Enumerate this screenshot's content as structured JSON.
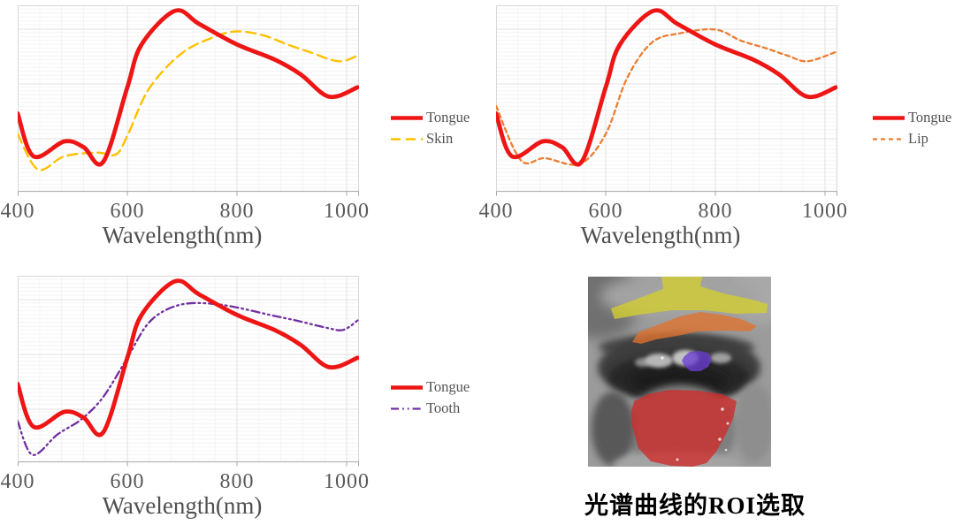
{
  "figure": {
    "background": "#ffffff",
    "axis_text_color": "#595959",
    "grid_major_color": "#e2e2e2",
    "grid_minor_color": "#f4f4f4"
  },
  "chart_data": [
    {
      "type": "line",
      "xlabel": "Wavelength(nm)",
      "ylabel": "",
      "x_ticks": [
        "400",
        "600",
        "800",
        "1000"
      ],
      "xlim": [
        400,
        1020
      ],
      "ylim": [
        0,
        1
      ],
      "grid": true,
      "legend_position": "right",
      "series": [
        {
          "name": "Tongue",
          "color": "#ee1515",
          "dash": "",
          "width": 4.8,
          "points": [
            [
              400,
              0.42
            ],
            [
              429,
              0.19
            ],
            [
              485,
              0.27
            ],
            [
              520,
              0.24
            ],
            [
              556,
              0.16
            ],
            [
              600,
              0.56
            ],
            [
              626,
              0.79
            ],
            [
              687,
              0.97
            ],
            [
              731,
              0.9
            ],
            [
              800,
              0.79
            ],
            [
              868,
              0.71
            ],
            [
              916,
              0.63
            ],
            [
              968,
              0.51
            ],
            [
              1020,
              0.56
            ]
          ]
        },
        {
          "name": "Skin",
          "color": "#ffc000",
          "dash": "11 6",
          "width": 2.4,
          "points": [
            [
              400,
              0.31
            ],
            [
              437,
              0.12
            ],
            [
              485,
              0.19
            ],
            [
              545,
              0.21
            ],
            [
              579,
              0.2
            ],
            [
              600,
              0.3
            ],
            [
              639,
              0.55
            ],
            [
              698,
              0.74
            ],
            [
              758,
              0.83
            ],
            [
              800,
              0.86
            ],
            [
              847,
              0.84
            ],
            [
              892,
              0.79
            ],
            [
              932,
              0.75
            ],
            [
              985,
              0.7
            ],
            [
              1020,
              0.73
            ]
          ]
        }
      ]
    },
    {
      "type": "line",
      "xlabel": "Wavelength(nm)",
      "ylabel": "",
      "x_ticks": [
        "400",
        "600",
        "800",
        "1000"
      ],
      "xlim": [
        400,
        1020
      ],
      "ylim": [
        0,
        1
      ],
      "grid": true,
      "legend_position": "right",
      "series": [
        {
          "name": "Tongue",
          "color": "#ee1515",
          "dash": "",
          "width": 4.8,
          "points": [
            [
              400,
              0.42
            ],
            [
              429,
              0.19
            ],
            [
              485,
              0.27
            ],
            [
              520,
              0.24
            ],
            [
              556,
              0.16
            ],
            [
              600,
              0.56
            ],
            [
              626,
              0.79
            ],
            [
              687,
              0.97
            ],
            [
              731,
              0.9
            ],
            [
              800,
              0.79
            ],
            [
              868,
              0.71
            ],
            [
              916,
              0.63
            ],
            [
              968,
              0.51
            ],
            [
              1020,
              0.56
            ]
          ]
        },
        {
          "name": "Lip",
          "color": "#ed7d31",
          "dash": "5 4",
          "width": 2.3,
          "points": [
            [
              400,
              0.46
            ],
            [
              445,
              0.17
            ],
            [
              489,
              0.18
            ],
            [
              553,
              0.15
            ],
            [
              600,
              0.31
            ],
            [
              639,
              0.61
            ],
            [
              684,
              0.8
            ],
            [
              735,
              0.85
            ],
            [
              800,
              0.87
            ],
            [
              847,
              0.81
            ],
            [
              892,
              0.77
            ],
            [
              932,
              0.73
            ],
            [
              968,
              0.7
            ],
            [
              1020,
              0.75
            ]
          ]
        }
      ]
    },
    {
      "type": "line",
      "xlabel": "Wavelength(nm)",
      "ylabel": "",
      "x_ticks": [
        "400",
        "600",
        "800",
        "1000"
      ],
      "xlim": [
        400,
        1020
      ],
      "ylim": [
        0,
        1
      ],
      "grid": true,
      "legend_position": "right",
      "series": [
        {
          "name": "Tongue",
          "color": "#ee1515",
          "dash": "",
          "width": 4.8,
          "points": [
            [
              400,
              0.42
            ],
            [
              429,
              0.19
            ],
            [
              485,
              0.27
            ],
            [
              520,
              0.24
            ],
            [
              556,
              0.16
            ],
            [
              600,
              0.56
            ],
            [
              626,
              0.79
            ],
            [
              687,
              0.97
            ],
            [
              731,
              0.9
            ],
            [
              800,
              0.79
            ],
            [
              868,
              0.71
            ],
            [
              916,
              0.63
            ],
            [
              968,
              0.51
            ],
            [
              1020,
              0.56
            ]
          ]
        },
        {
          "name": "Tooth",
          "color": "#7030a0",
          "dash": "9 4 1.8 4 1.8 4",
          "width": 2.3,
          "points": [
            [
              400,
              0.22
            ],
            [
              427,
              0.04
            ],
            [
              473,
              0.15
            ],
            [
              516,
              0.23
            ],
            [
              556,
              0.35
            ],
            [
              600,
              0.56
            ],
            [
              634,
              0.73
            ],
            [
              666,
              0.81
            ],
            [
              706,
              0.85
            ],
            [
              755,
              0.85
            ],
            [
              800,
              0.83
            ],
            [
              860,
              0.79
            ],
            [
              908,
              0.76
            ],
            [
              965,
              0.72
            ],
            [
              994,
              0.71
            ],
            [
              1020,
              0.76
            ]
          ]
        }
      ]
    }
  ],
  "roi": {
    "caption": "光谱曲线的ROI选取",
    "regions": [
      {
        "name": "skin",
        "color": "#d3ce2e"
      },
      {
        "name": "lip",
        "color": "#e0722e"
      },
      {
        "name": "tooth",
        "color": "#6a3fd4"
      },
      {
        "name": "tongue",
        "color": "#cf2b2b"
      }
    ]
  }
}
